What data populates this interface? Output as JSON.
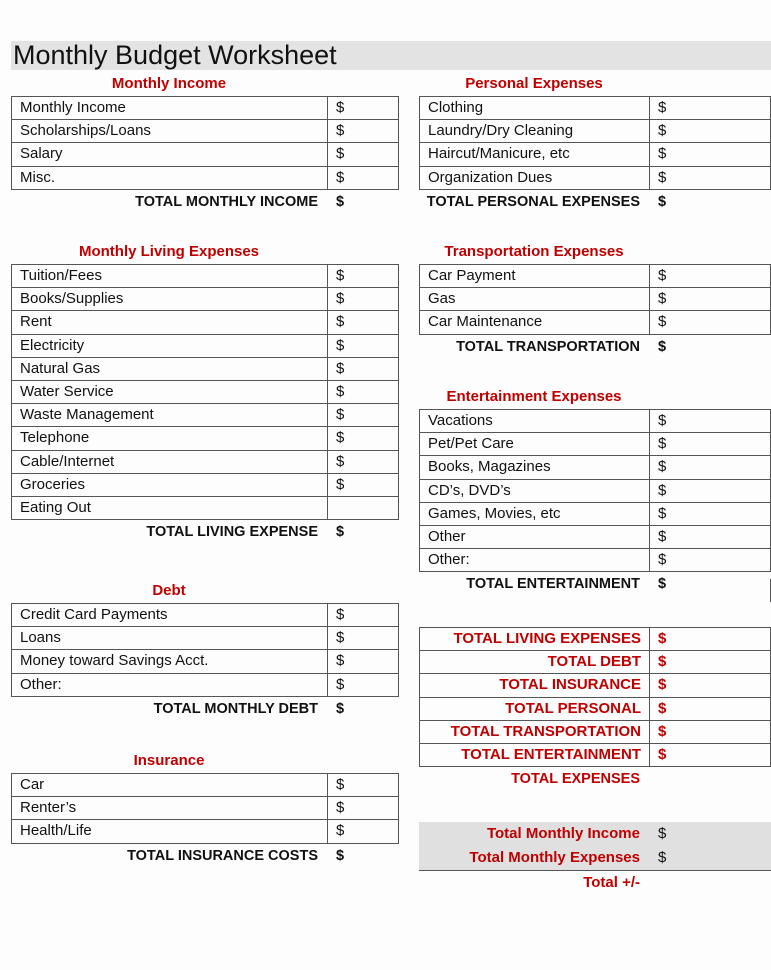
{
  "title": "Monthly Budget Worksheet",
  "sections": {
    "income": {
      "heading": "Monthly Income",
      "rows": [
        {
          "label": "Monthly Income",
          "value": "$"
        },
        {
          "label": "Scholarships/Loans",
          "value": "$"
        },
        {
          "label": "Salary",
          "value": "$"
        },
        {
          "label": "Misc.",
          "value": "$"
        }
      ],
      "total_label": "TOTAL MONTHLY INCOME",
      "total_value": "$"
    },
    "living": {
      "heading": "Monthly Living Expenses",
      "rows": [
        {
          "label": "Tuition/Fees",
          "value": "$"
        },
        {
          "label": "Books/Supplies",
          "value": "$"
        },
        {
          "label": "Rent",
          "value": "$"
        },
        {
          "label": "Electricity",
          "value": "$"
        },
        {
          "label": "Natural Gas",
          "value": "$"
        },
        {
          "label": "Water Service",
          "value": "$"
        },
        {
          "label": "Waste Management",
          "value": "$"
        },
        {
          "label": "Telephone",
          "value": "$"
        },
        {
          "label": "Cable/Internet",
          "value": "$"
        },
        {
          "label": "Groceries",
          "value": "$"
        },
        {
          "label": "Eating Out",
          "value": ""
        }
      ],
      "total_label": "TOTAL LIVING EXPENSE",
      "total_value": "$"
    },
    "debt": {
      "heading": "Debt",
      "rows": [
        {
          "label": "Credit Card Payments",
          "value": "$"
        },
        {
          "label": "Loans",
          "value": "$"
        },
        {
          "label": "Money toward Savings Acct.",
          "value": "$"
        },
        {
          "label": "Other:",
          "value": "$"
        }
      ],
      "total_label": "TOTAL MONTHLY DEBT",
      "total_value": "$"
    },
    "insurance": {
      "heading": "Insurance",
      "rows": [
        {
          "label": "Car",
          "value": "$"
        },
        {
          "label": "Renter’s",
          "value": "$"
        },
        {
          "label": "Health/Life",
          "value": "$"
        }
      ],
      "total_label": "TOTAL INSURANCE COSTS",
      "total_value": "$"
    },
    "personal": {
      "heading": "Personal Expenses",
      "rows": [
        {
          "label": "Clothing",
          "value": "$"
        },
        {
          "label": "Laundry/Dry Cleaning",
          "value": "$"
        },
        {
          "label": "Haircut/Manicure, etc",
          "value": "$"
        },
        {
          "label": "Organization Dues",
          "value": "$"
        }
      ],
      "total_label": "TOTAL PERSONAL EXPENSES",
      "total_value": "$"
    },
    "transportation": {
      "heading": "Transportation Expenses",
      "rows": [
        {
          "label": "Car Payment",
          "value": "$"
        },
        {
          "label": "Gas",
          "value": "$"
        },
        {
          "label": "Car Maintenance",
          "value": "$"
        }
      ],
      "total_label": "TOTAL TRANSPORTATION",
      "total_value": "$"
    },
    "entertainment": {
      "heading": "Entertainment Expenses",
      "rows": [
        {
          "label": "Vacations",
          "value": "$"
        },
        {
          "label": "Pet/Pet Care",
          "value": "$"
        },
        {
          "label": "Books, Magazines",
          "value": "$"
        },
        {
          "label": "CD’s, DVD’s",
          "value": "$"
        },
        {
          "label": "Games, Movies, etc",
          "value": "$"
        },
        {
          "label": "Other",
          "value": "$"
        },
        {
          "label": "Other:",
          "value": "$"
        }
      ],
      "total_label": "TOTAL ENTERTAINMENT",
      "total_value": "$"
    }
  },
  "summary": {
    "rows": [
      {
        "label": "TOTAL LIVING EXPENSES",
        "value": "$"
      },
      {
        "label": "TOTAL DEBT",
        "value": "$"
      },
      {
        "label": "TOTAL INSURANCE",
        "value": "$"
      },
      {
        "label": "TOTAL PERSONAL",
        "value": "$"
      },
      {
        "label": "TOTAL TRANSPORTATION",
        "value": "$"
      },
      {
        "label": "TOTAL ENTERTAINMENT",
        "value": "$"
      }
    ],
    "total_label": "TOTAL EXPENSES"
  },
  "balance": {
    "income_label": "Total Monthly Income",
    "income_value": "$",
    "expenses_label": "Total Monthly Expenses",
    "expenses_value": "$",
    "net_label": "Total +/-"
  },
  "colors": {
    "accent": "#c00000",
    "band": "#e0e0e0"
  }
}
